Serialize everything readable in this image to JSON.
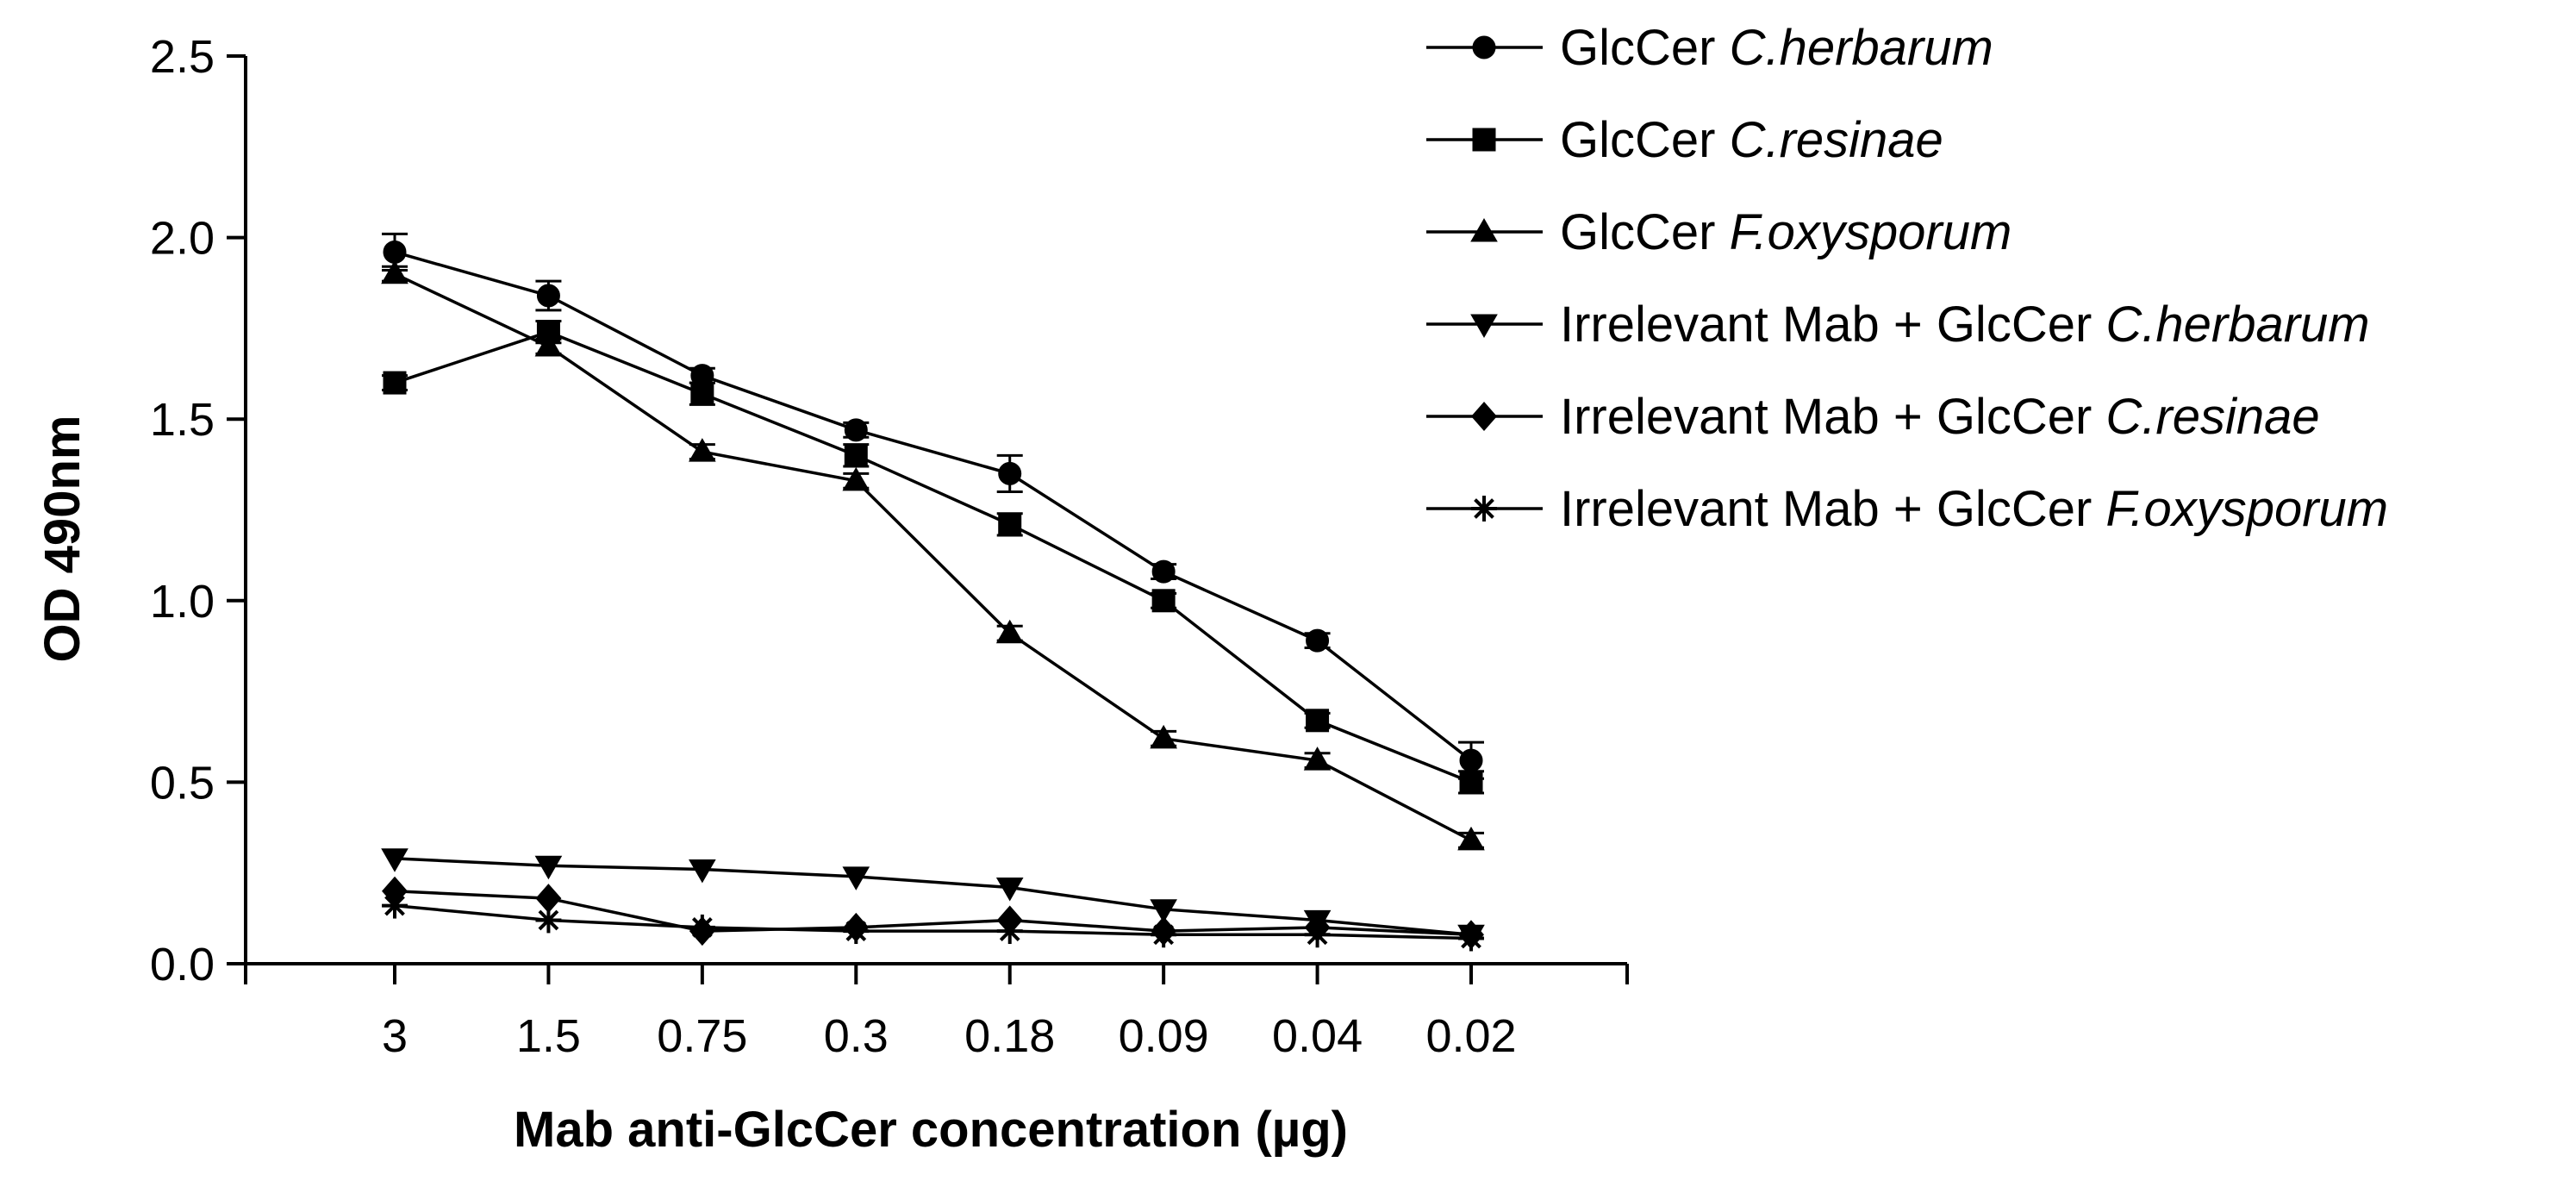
{
  "chart_data": {
    "type": "line",
    "title": "",
    "xlabel": "Mab anti-GlcCer concentration (µg)",
    "ylabel": "OD 490nm",
    "categories": [
      "3",
      "1.5",
      "0.75",
      "0.3",
      "0.18",
      "0.09",
      "0.04",
      "0.02"
    ],
    "yticks": [
      "0.0",
      "0.5",
      "1.0",
      "1.5",
      "2.0",
      "2.5"
    ],
    "ylim": [
      0,
      2.5
    ],
    "legend_position": "top-right",
    "series": [
      {
        "name": "GlcCer C.herbarum",
        "name_prefix": "GlcCer ",
        "name_italic": "C.herbarum",
        "marker": "circle",
        "values": [
          1.96,
          1.84,
          1.62,
          1.47,
          1.35,
          1.08,
          0.89,
          0.56
        ],
        "errors": [
          0.05,
          0.04,
          0.02,
          0.02,
          0.05,
          0.02,
          0.02,
          0.05
        ]
      },
      {
        "name": "GlcCer C.resinae",
        "name_prefix": "GlcCer ",
        "name_italic": "C.resinae",
        "marker": "square",
        "values": [
          1.6,
          1.74,
          1.57,
          1.4,
          1.21,
          1.0,
          0.67,
          0.5
        ],
        "errors": [
          0.02,
          0.03,
          0.03,
          0.03,
          0.03,
          0.02,
          0.02,
          0.03
        ]
      },
      {
        "name": "GlcCer F.oxysporum",
        "name_prefix": "GlcCer ",
        "name_italic": "F.oxysporum",
        "marker": "triangle-up",
        "values": [
          1.9,
          1.7,
          1.41,
          1.33,
          0.91,
          0.62,
          0.56,
          0.34
        ],
        "errors": [
          0.02,
          0.02,
          0.02,
          0.02,
          0.02,
          0.02,
          0.02,
          0.02
        ]
      },
      {
        "name": "Irrelevant Mab + GlcCer C.herbarum",
        "name_prefix": "Irrelevant Mab + GlcCer ",
        "name_italic": "C.herbarum",
        "marker": "triangle-down",
        "values": [
          0.29,
          0.27,
          0.26,
          0.24,
          0.21,
          0.15,
          0.12,
          0.08
        ],
        "errors": [
          0,
          0,
          0,
          0,
          0,
          0,
          0,
          0
        ]
      },
      {
        "name": "Irrelevant Mab + GlcCer C.resinae",
        "name_prefix": "Irrelevant Mab + GlcCer ",
        "name_italic": "C.resinae",
        "marker": "diamond",
        "values": [
          0.2,
          0.18,
          0.09,
          0.1,
          0.12,
          0.09,
          0.1,
          0.08
        ],
        "errors": [
          0,
          0,
          0,
          0,
          0,
          0,
          0,
          0
        ]
      },
      {
        "name": "Irrelevant Mab + GlcCer F.oxysporum",
        "name_prefix": "Irrelevant Mab + GlcCer ",
        "name_italic": "F.oxysporum",
        "marker": "asterisk",
        "values": [
          0.16,
          0.12,
          0.1,
          0.09,
          0.09,
          0.08,
          0.08,
          0.07
        ],
        "errors": [
          0,
          0,
          0,
          0,
          0,
          0,
          0,
          0
        ]
      }
    ]
  }
}
